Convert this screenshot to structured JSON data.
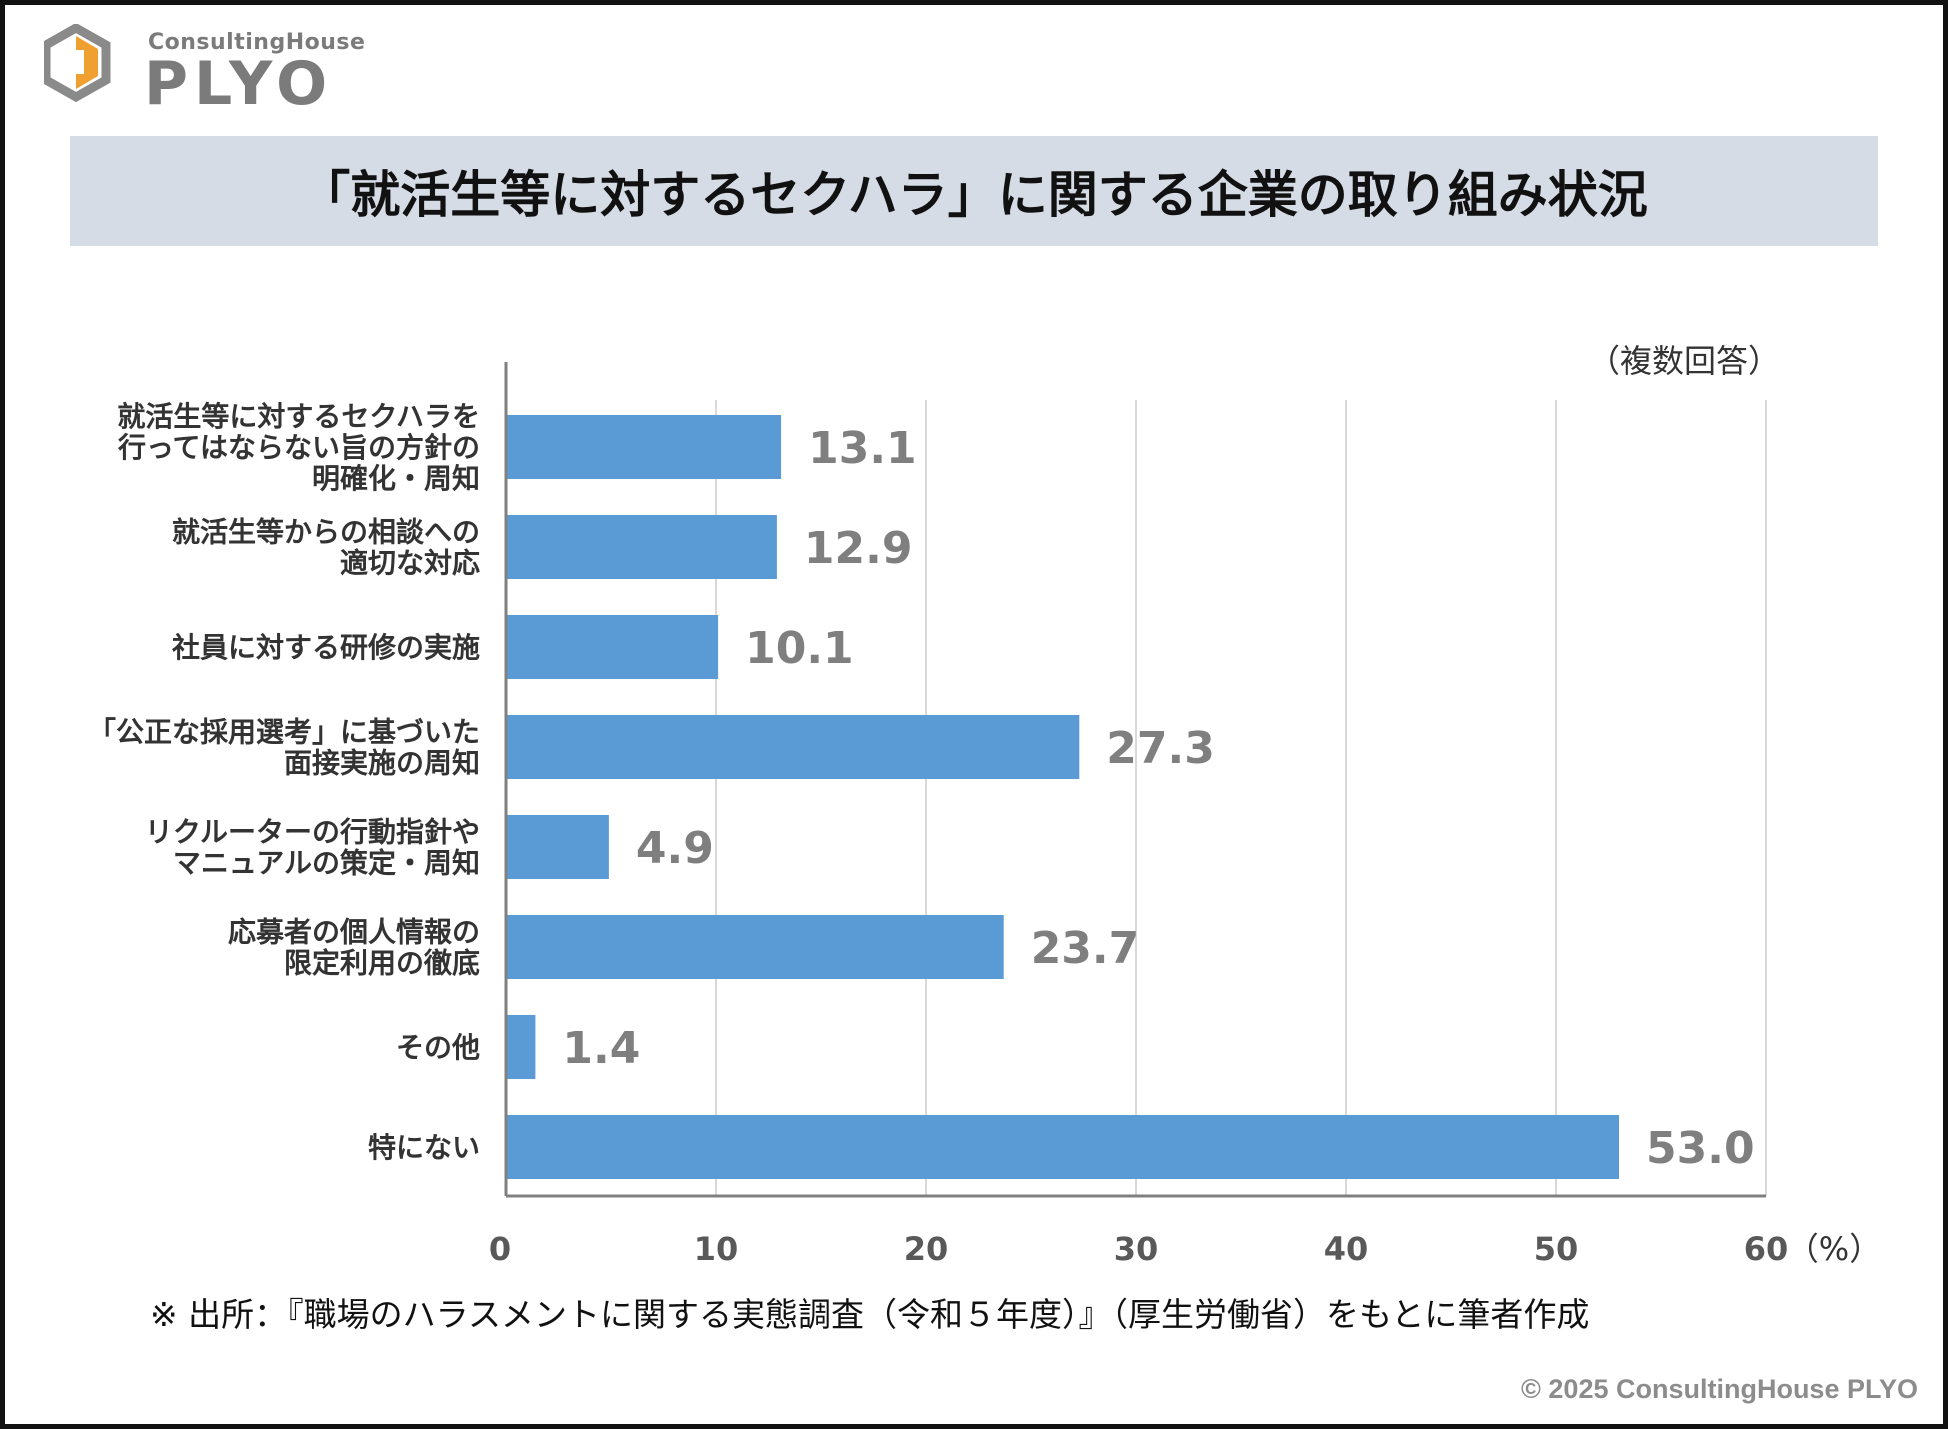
{
  "brand": {
    "logo_sub": "ConsultingHouse",
    "logo_main": "PLYO",
    "colors": {
      "logo_orange": "#f0a030",
      "logo_gray": "#8a8a8a"
    }
  },
  "header": {
    "title": "「就活生等に対するセクハラ」に関する企業の取り組み状況",
    "band_color": "#d6dce5"
  },
  "chart_data": {
    "type": "bar",
    "orientation": "horizontal",
    "annotation": "（複数回答）",
    "unit_label": "（%）",
    "categories": [
      "就活生等に対するセクハラを\n行ってはならない旨の方針の\n明確化・周知",
      "就活生等からの相談への\n適切な対応",
      "社員に対する研修の実施",
      "「公正な採用選考」に基づいた\n面接実施の周知",
      "リクルーターの行動指針や\nマニュアルの策定・周知",
      "応募者の個人情報の\n限定利用の徹底",
      "その他",
      "特にない"
    ],
    "values": [
      13.1,
      12.9,
      10.1,
      27.3,
      4.9,
      23.7,
      1.4,
      53.0
    ],
    "value_labels": [
      "13.1",
      "12.9",
      "10.1",
      "27.3",
      "4.9",
      "23.7",
      "1.4",
      "53.0"
    ],
    "xlim": [
      0,
      60
    ],
    "xticks": [
      "0",
      "10",
      "20",
      "30",
      "40",
      "50",
      "60"
    ],
    "grid": true,
    "bar_color": "#5b9bd5",
    "label_color": "#7f7f7f",
    "grid_color": "#d9d9d9",
    "axis_color": "#808080"
  },
  "footer": {
    "note": "※ 出所：『職場のハラスメントに関する実態調査（令和５年度）』（厚生労働省）をもとに筆者作成",
    "copyright": "© 2025 ConsultingHouse PLYO"
  }
}
